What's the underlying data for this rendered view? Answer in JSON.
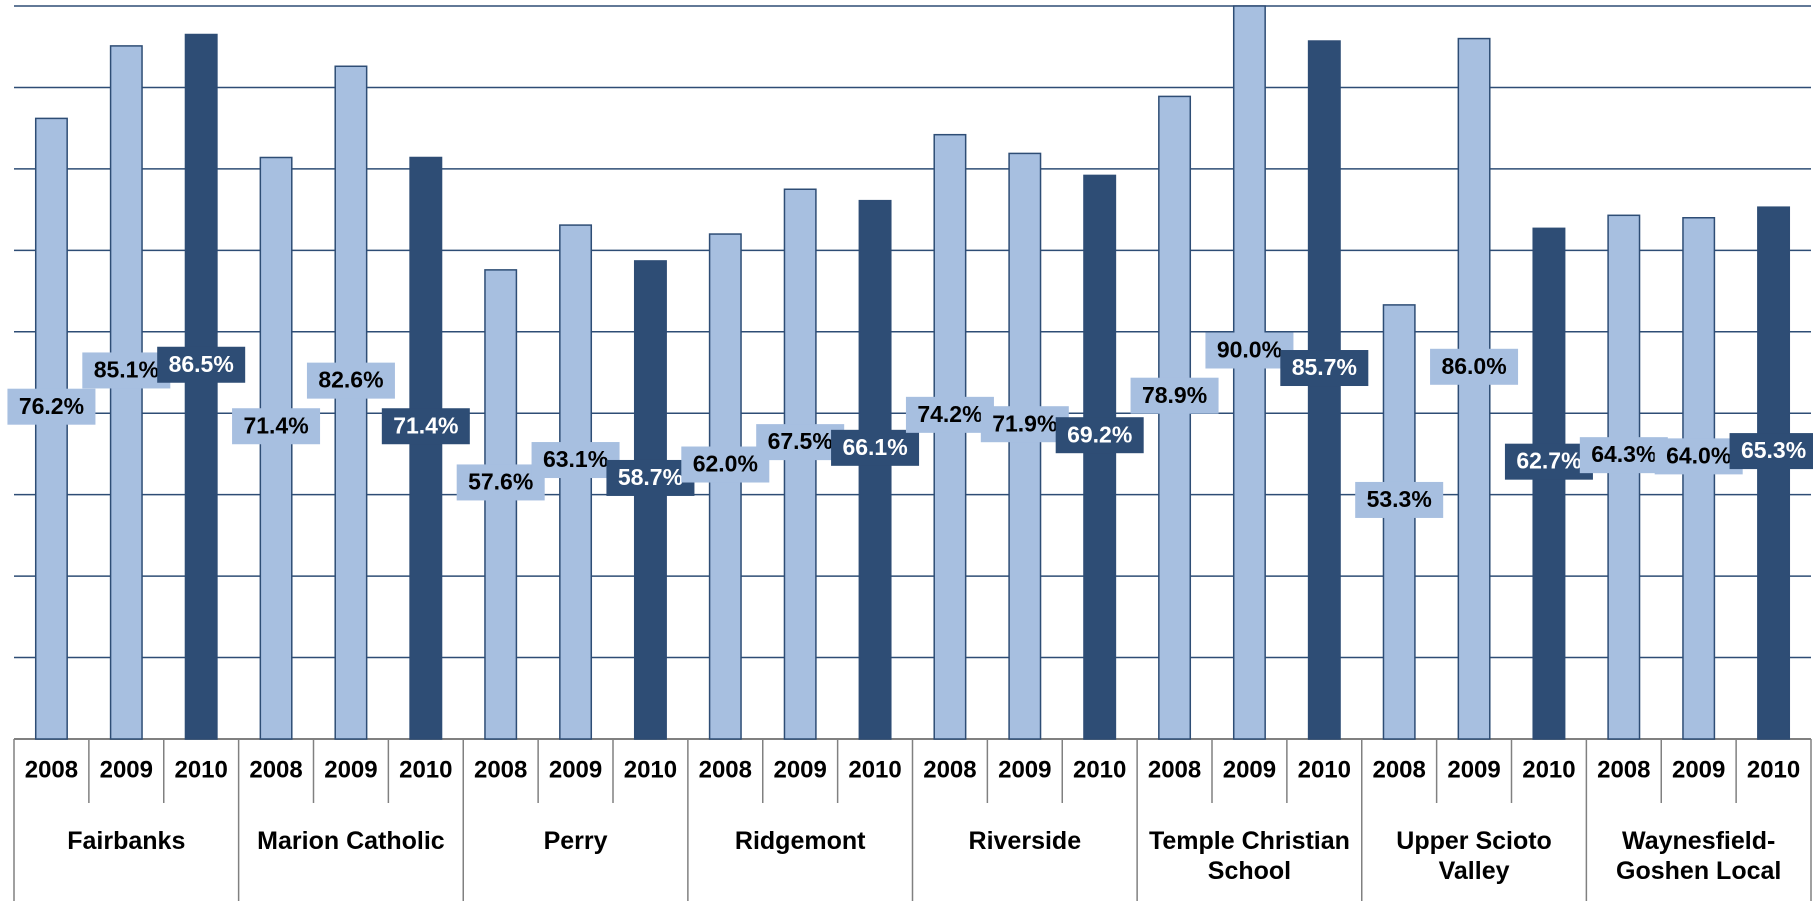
{
  "chart_data": {
    "type": "bar",
    "categories": [
      "Fairbanks",
      "Marion Catholic",
      "Perry",
      "Ridgemont",
      "Riverside",
      "Temple Christian School",
      "Upper Scioto Valley",
      "Waynesfield-Goshen Local"
    ],
    "series": [
      {
        "name": "2008",
        "color": "#a7bfe0",
        "values": [
          76.2,
          71.4,
          57.6,
          62.0,
          74.2,
          78.9,
          53.3,
          64.3
        ],
        "value_labels": [
          "76.2%",
          "71.4%",
          "57.6%",
          "62.0%",
          "74.2%",
          "78.9%",
          "53.3%",
          "64.3%"
        ]
      },
      {
        "name": "2009",
        "color": "#a7bfe0",
        "values": [
          85.1,
          82.6,
          63.1,
          67.5,
          71.9,
          90.0,
          86.0,
          64.0
        ],
        "value_labels": [
          "85.1%",
          "82.6%",
          "63.1%",
          "67.5%",
          "71.9%",
          "90.0%",
          "86.0%",
          "64.0%"
        ]
      },
      {
        "name": "2010",
        "color": "#2e4d75",
        "values": [
          86.5,
          71.4,
          58.7,
          66.1,
          69.2,
          85.7,
          62.7,
          65.3
        ],
        "value_labels": [
          "86.5%",
          "71.4%",
          "58.7%",
          "66.1%",
          "69.2%",
          "85.7%",
          "62.7%",
          "65.3%"
        ]
      }
    ],
    "ylim": [
      0,
      90
    ],
    "yticks": [
      0,
      10,
      20,
      30,
      40,
      50,
      60,
      70,
      80,
      90
    ],
    "grid": true,
    "ytick_labels": false
  }
}
